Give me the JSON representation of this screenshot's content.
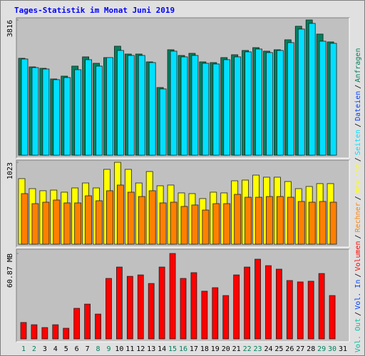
{
  "chart_data": {
    "type": "bar",
    "title": "Tages-Statistik im Monat Juni 2019",
    "categories": [
      "1",
      "2",
      "3",
      "4",
      "5",
      "6",
      "7",
      "8",
      "9",
      "10",
      "11",
      "12",
      "13",
      "14",
      "15",
      "16",
      "17",
      "18",
      "19",
      "20",
      "21",
      "22",
      "23",
      "24",
      "25",
      "26",
      "27",
      "28",
      "29",
      "30",
      "31"
    ],
    "category_colors": [
      "#00805c",
      "#00805c",
      "#000000",
      "#000000",
      "#000000",
      "#000000",
      "#000000",
      "#00805c",
      "#00805c",
      "#000000",
      "#000000",
      "#000000",
      "#000000",
      "#000000",
      "#00805c",
      "#00805c",
      "#000000",
      "#000000",
      "#000000",
      "#000000",
      "#000000",
      "#00805c",
      "#00805c",
      "#000000",
      "#000000",
      "#000000",
      "#000000",
      "#000000",
      "#00805c",
      "#00805c",
      "#000000"
    ],
    "legend_separator": "/",
    "panels": [
      {
        "ylim": [
          0,
          3816
        ],
        "yticks": [
          3816
        ],
        "series": [
          {
            "name": "Anfragen",
            "color": "#00805c",
            "values": [
              2734,
              2492,
              2452,
              2151,
              2231,
              2513,
              2774,
              2593,
              2754,
              3075,
              2854,
              2854,
              2633,
              1910,
              2975,
              2814,
              2874,
              2633,
              2613,
              2754,
              2834,
              2955,
              3035,
              2935,
              2975,
              3256,
              3638,
              3816,
              3417,
              3196,
              null
            ]
          },
          {
            "name": "Dateien",
            "color": "#0040ff"
          },
          {
            "name": "Seiten",
            "color": "#00e0ff",
            "values": [
              2714,
              2472,
              2432,
              2131,
              2191,
              2412,
              2694,
              2513,
              2754,
              2955,
              2814,
              2814,
              2613,
              1870,
              2935,
              2774,
              2814,
              2593,
              2573,
              2694,
              2774,
              2915,
              2995,
              2895,
              2955,
              3176,
              3558,
              3718,
              3216,
              3156,
              null
            ]
          }
        ]
      },
      {
        "ylim": [
          0,
          1023
        ],
        "yticks": [
          1023
        ],
        "series": [
          {
            "name": "Besuche",
            "color": "#ffff00",
            "values": [
              819,
              694,
              668,
              676,
              650,
              703,
              765,
              703,
              935,
              1023,
              935,
              765,
              908,
              730,
              739,
              641,
              632,
              570,
              650,
              641,
              792,
              801,
              863,
              837,
              837,
              783,
              694,
              721,
              757,
              757,
              null
            ]
          },
          {
            "name": "Rechner",
            "color": "#ff8000",
            "values": [
              632,
              507,
              525,
              552,
              516,
              516,
              605,
              543,
              668,
              739,
              650,
              596,
              668,
              516,
              525,
              472,
              490,
              427,
              507,
              507,
              623,
              587,
              587,
              596,
              596,
              587,
              534,
              525,
              534,
              525,
              null
            ]
          }
        ]
      },
      {
        "ylim": [
          0,
          60.87
        ],
        "yticks": [
          {
            "value": 60.87,
            "label": "60.87 MB"
          }
        ],
        "series": [
          {
            "name": "Volumen",
            "color": "#ff0000",
            "values": [
              11.7,
              10.1,
              8.1,
              10.1,
              7.6,
              21.8,
              24.8,
              17.7,
              43.1,
              51.2,
              44.6,
              45.6,
              39.5,
              51.2,
              60.87,
              43.1,
              47.2,
              34.0,
              36.5,
              30.9,
              45.6,
              51.2,
              56.8,
              52.2,
              49.7,
              41.6,
              40.6,
              41.1,
              46.6,
              30.9,
              null
            ]
          },
          {
            "name": "Vol. In",
            "color": "#0040ff"
          },
          {
            "name": "Vol. Out",
            "color": "#00c0a0"
          }
        ]
      }
    ]
  }
}
